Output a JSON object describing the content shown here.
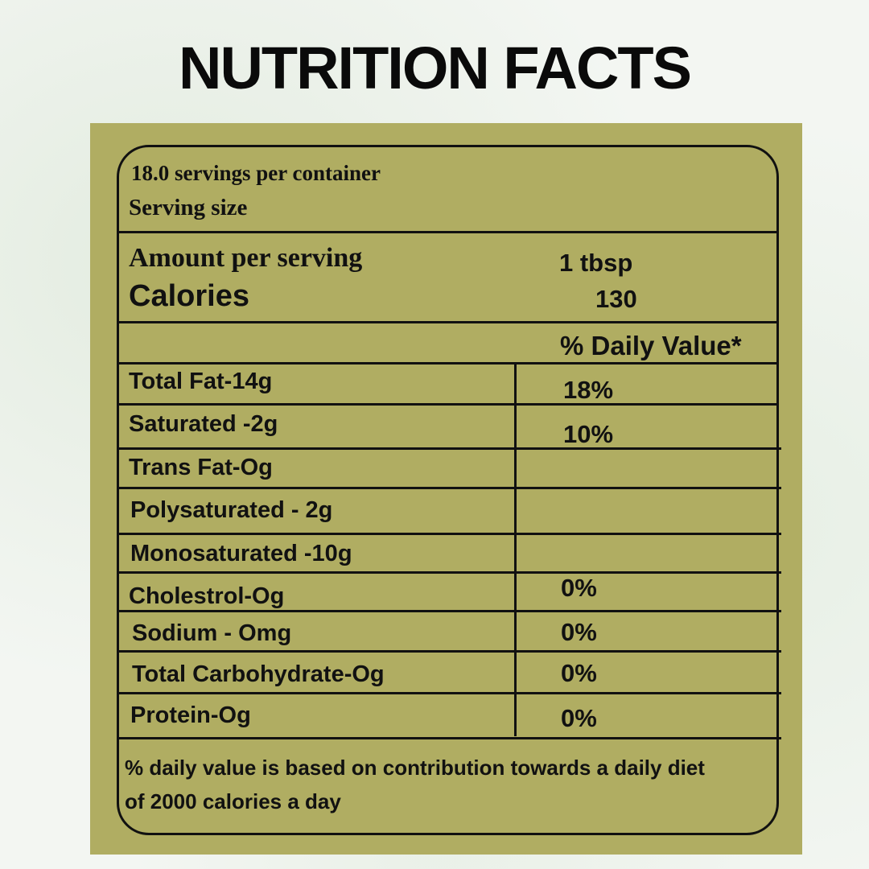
{
  "header": {
    "title": "NUTRITION FACTS"
  },
  "label": {
    "servings": "18.0 servings per container",
    "serving_size_label": "Serving size",
    "amount_label": "Amount per serving",
    "serving_size": "1 tbsp",
    "calories_label": "Calories",
    "calories": "130",
    "dv_header": "% Daily Value*"
  },
  "rows": [
    {
      "name": "Total Fat-14g",
      "dv": "18%"
    },
    {
      "name": "Saturated -2g",
      "dv": "10%"
    },
    {
      "name": "Trans Fat-Og"
    },
    {
      "name": "Polysaturated - 2g"
    },
    {
      "name": "Monosaturated -10g"
    },
    {
      "name": "Cholestrol-Og",
      "dv": "0%"
    },
    {
      "name": "Sodium - Omg",
      "dv": "0%"
    },
    {
      "name": "Total Carbohydrate-Og",
      "dv": "0%"
    },
    {
      "name": "Protein-Og",
      "dv": "0%"
    }
  ],
  "footnote": [
    "% daily value is based on contribution towards a daily diet",
    "of 2000 calories a day"
  ]
}
